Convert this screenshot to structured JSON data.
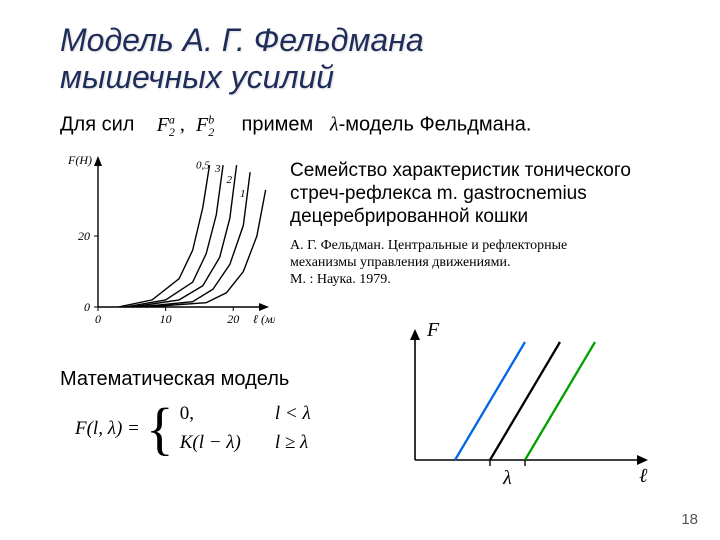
{
  "title_l1": "Модель А. Г. Фельдмана",
  "title_l2": "мышечных усилий",
  "forces_prefix": "Для сил",
  "F2a_base": "F",
  "F2a_sub": "2",
  "F2a_sup": "a",
  "F2b_base": "F",
  "F2b_sub": "2",
  "F2b_sup": "b",
  "forces_mid": "примем",
  "lambda": "λ",
  "forces_suffix": "-модель Фельдмана.",
  "desc_l1": "Семейство характеристик тонического",
  "desc_l2": "стреч-рефлекса m. gastrocnemius",
  "desc_l3": "децеребрированной кошки",
  "ref_l1": "А. Г. Фельдман. Центральные и рефлекторные",
  "ref_l2": "механизмы управления движениями.",
  "ref_l3": "М. : Наука. 1979.",
  "math_label": "Математическая модель",
  "eq_lhs": "F(l, λ) =",
  "eq_top": "0,",
  "eq_bot": "K(l − λ)",
  "cond1": "l < λ",
  "cond2": "l ≥ λ",
  "pagenum": "18",
  "chart1": {
    "type": "line",
    "xlim": [
      0,
      25
    ],
    "ylim": [
      0,
      42
    ],
    "xticks": [
      0,
      10,
      20
    ],
    "yticks": [
      0,
      20
    ],
    "x_unit_label": "ℓ (мм)",
    "y_label": "F(H)",
    "axis_color": "#000000",
    "line_color": "#000000",
    "line_width": 1.4,
    "curve_labels": [
      "0,5",
      "3",
      "2",
      "1"
    ],
    "label_fontsize": 11,
    "curves": [
      [
        [
          3,
          0
        ],
        [
          8,
          2
        ],
        [
          12,
          8
        ],
        [
          14,
          16
        ],
        [
          15.5,
          28
        ],
        [
          16.5,
          40
        ]
      ],
      [
        [
          4,
          0
        ],
        [
          10,
          2
        ],
        [
          14,
          7
        ],
        [
          16,
          15
        ],
        [
          17.5,
          26
        ],
        [
          18.5,
          40
        ]
      ],
      [
        [
          5,
          0
        ],
        [
          12,
          2
        ],
        [
          15.5,
          6
        ],
        [
          18,
          14
        ],
        [
          19.5,
          25
        ],
        [
          20.5,
          40
        ]
      ],
      [
        [
          6,
          0
        ],
        [
          14,
          1.5
        ],
        [
          17,
          5
        ],
        [
          19.5,
          12
        ],
        [
          21.5,
          23
        ],
        [
          22.5,
          38
        ]
      ],
      [
        [
          7,
          0
        ],
        [
          16,
          1.2
        ],
        [
          19,
          4
        ],
        [
          21.5,
          10
        ],
        [
          23.5,
          20
        ],
        [
          24.8,
          33
        ]
      ]
    ]
  },
  "chart2": {
    "type": "line",
    "axis_F": "F",
    "axis_l": "ℓ",
    "axis_lambda": "λ",
    "axis_color": "#000000",
    "bg": "#ffffff",
    "line_width": 2.3,
    "lines": [
      {
        "color": "#0066e6",
        "points": [
          [
            40,
            130
          ],
          [
            110,
            12
          ]
        ]
      },
      {
        "color": "#000000",
        "points": [
          [
            75,
            130
          ],
          [
            145,
            12
          ]
        ]
      },
      {
        "color": "#00a000",
        "points": [
          [
            110,
            130
          ],
          [
            180,
            12
          ]
        ]
      }
    ],
    "lambda_ticks_x": [
      75,
      110
    ]
  }
}
